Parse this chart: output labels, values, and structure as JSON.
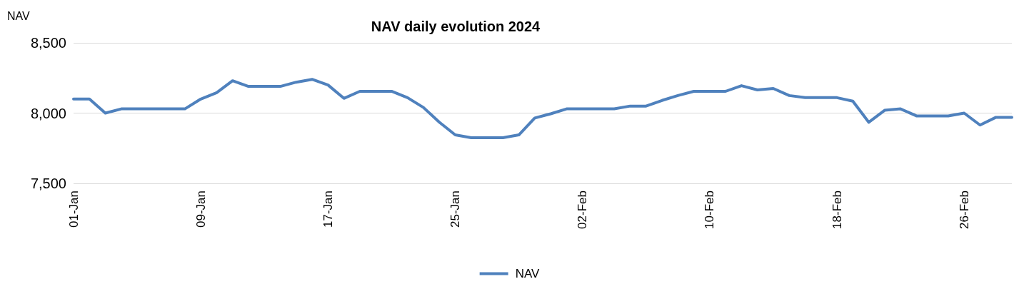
{
  "chart_data": {
    "type": "line",
    "title": "NAV daily evolution 2024",
    "ylabel": "NAV",
    "categories": [
      "01-Jan",
      null,
      null,
      null,
      null,
      null,
      null,
      null,
      "09-Jan",
      null,
      null,
      null,
      null,
      null,
      null,
      null,
      "17-Jan",
      null,
      null,
      null,
      null,
      null,
      null,
      null,
      "25-Jan",
      null,
      null,
      null,
      null,
      null,
      null,
      null,
      "02-Feb",
      null,
      null,
      null,
      null,
      null,
      null,
      null,
      "10-Feb",
      null,
      null,
      null,
      null,
      null,
      null,
      null,
      "18-Feb",
      null,
      null,
      null,
      null,
      null,
      null,
      null,
      "26-Feb",
      null,
      null,
      null
    ],
    "series": [
      {
        "name": "NAV",
        "color": "#4f81bd",
        "values": [
          8100,
          8100,
          8000,
          8030,
          8030,
          8030,
          8030,
          8030,
          8100,
          8145,
          8230,
          8190,
          8190,
          8190,
          8220,
          8240,
          8200,
          8105,
          8155,
          8155,
          8155,
          8110,
          8040,
          7935,
          7845,
          7825,
          7825,
          7825,
          7845,
          7965,
          7995,
          8030,
          8030,
          8030,
          8030,
          8050,
          8050,
          8090,
          8125,
          8155,
          8155,
          8155,
          8195,
          8165,
          8175,
          8125,
          8110,
          8110,
          8110,
          8085,
          7935,
          8020,
          8030,
          7980,
          7980,
          7980,
          8000,
          7915,
          7970,
          7970
        ]
      }
    ],
    "ylim": [
      7500,
      8500
    ],
    "yticks": [
      {
        "value": 7500,
        "label": "7,500"
      },
      {
        "value": 8000,
        "label": "8,000"
      },
      {
        "value": 8500,
        "label": "8,500"
      }
    ],
    "grid": "y",
    "legend": "bottom",
    "marker": "none",
    "line_style": "solid"
  }
}
